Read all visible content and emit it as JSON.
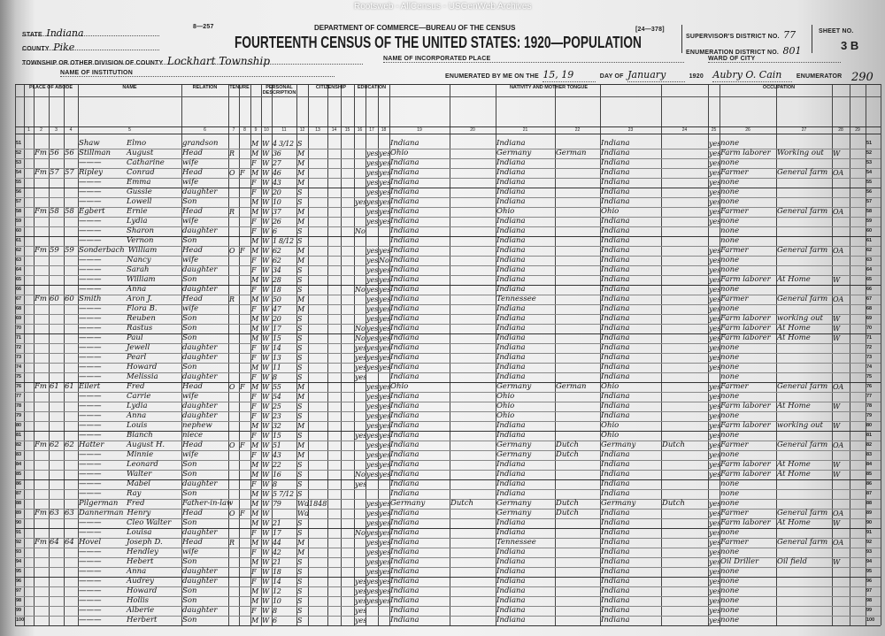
{
  "watermark": "Rootsweb - AllCensus - USGenWeb Archives",
  "header": {
    "form_no": "8—257",
    "department": "DEPARTMENT OF COMMERCE—BUREAU OF THE CENSUS",
    "title": "FOURTEENTH CENSUS OF THE UNITED STATES: 1920—POPULATION",
    "form_code": "[24—378]",
    "state_label": "STATE",
    "state": "Indiana",
    "county_label": "COUNTY",
    "county": "Pike",
    "township_label": "TOWNSHIP OR OTHER DIVISION OF COUNTY",
    "township": "Lockhart Township",
    "institution_label": "NAME OF INSTITUTION",
    "incorporated_label": "NAME OF INCORPORATED PLACE",
    "ward_label": "WARD OF CITY",
    "enumerated_label": "ENUMERATED BY ME ON THE",
    "enumerated_day": "15, 19",
    "day_of_label": "DAY OF",
    "month": "January",
    "year": "1920",
    "enumerator": "Aubry O. Cain",
    "enumerator_label": "ENUMERATOR",
    "supervisor_label": "SUPERVISOR'S DISTRICT NO.",
    "supervisor_no": "77",
    "ed_label": "ENUMERATION DISTRICT NO.",
    "ed_no": "801",
    "sheet_label": "SHEET NO.",
    "sheet_no": "3 B",
    "margin_note": "290"
  },
  "groups": [
    "PLACE OF ABODE",
    "NAME",
    "RELATION",
    "TENURE",
    "PERSONAL DESCRIPTION",
    "CITIZENSHIP",
    "EDUCATION",
    "NATIVITY AND MOTHER TONGUE",
    "OCCUPATION"
  ],
  "rows": [
    {
      "n": "51",
      "sn": "Shaw",
      "gn": "Elmo",
      "rel": "grandson",
      "sx": "M",
      "c": "W",
      "a": "4 3/12",
      "ms": "S",
      "bp": "Indiana",
      "fbp": "Indiana",
      "mbp": "Indiana",
      "en": "yes",
      "occ": "none"
    },
    {
      "n": "52",
      "h": "Fm",
      "d": "56",
      "f": "56",
      "sn": "Stillman",
      "gn": "August",
      "rel": "Head",
      "t": "R",
      "sx": "M",
      "c": "W",
      "a": "36",
      "ms": "M",
      "s": "",
      "r": "yes",
      "w": "yes",
      "bp": "Ohio",
      "fbp": "Germany",
      "ftg": "German",
      "mbp": "Indiana",
      "en": "yes",
      "occ": "Farm laborer",
      "ind": "Working out",
      "cls": "W"
    },
    {
      "n": "53",
      "gn": "Catharine",
      "rel": "wife",
      "sx": "F",
      "c": "W",
      "a": "27",
      "ms": "M",
      "r": "yes",
      "w": "yes",
      "bp": "Indiana",
      "fbp": "Indiana",
      "mbp": "Indiana",
      "en": "yes",
      "occ": "none"
    },
    {
      "n": "54",
      "h": "Fm",
      "d": "57",
      "f": "57",
      "sn": "Ripley",
      "gn": "Conrad",
      "rel": "Head",
      "t": "O",
      "m": "F",
      "sx": "M",
      "c": "W",
      "a": "46",
      "ms": "M",
      "r": "yes",
      "w": "yes",
      "bp": "Indiana",
      "fbp": "Indiana",
      "mbp": "Indiana",
      "en": "yes",
      "occ": "Farmer",
      "ind": "General farm",
      "cls": "OA"
    },
    {
      "n": "55",
      "gn": "Emma",
      "rel": "wife",
      "sx": "F",
      "c": "W",
      "a": "43",
      "ms": "M",
      "r": "yes",
      "w": "yes",
      "bp": "Indiana",
      "fbp": "Indiana",
      "mbp": "Indiana",
      "en": "yes",
      "occ": "none"
    },
    {
      "n": "56",
      "gn": "Gussie",
      "rel": "daughter",
      "sx": "F",
      "c": "W",
      "a": "20",
      "ms": "S",
      "r": "yes",
      "w": "yes",
      "bp": "Indiana",
      "fbp": "Indiana",
      "mbp": "Indiana",
      "en": "yes",
      "occ": "none"
    },
    {
      "n": "57",
      "gn": "Lowell",
      "rel": "Son",
      "sx": "M",
      "c": "W",
      "a": "10",
      "ms": "S",
      "s": "yes",
      "r": "yes",
      "w": "yes",
      "bp": "Indiana",
      "fbp": "Indiana",
      "mbp": "Indiana",
      "en": "yes",
      "occ": "none"
    },
    {
      "n": "58",
      "h": "Fm",
      "d": "58",
      "f": "58",
      "sn": "Egbert",
      "gn": "Ernie",
      "rel": "Head",
      "t": "R",
      "sx": "M",
      "c": "W",
      "a": "37",
      "ms": "M",
      "r": "yes",
      "w": "yes",
      "bp": "Indiana",
      "fbp": "Ohio",
      "mbp": "Ohio",
      "en": "yes",
      "occ": "Farmer",
      "ind": "General farm",
      "cls": "OA"
    },
    {
      "n": "59",
      "gn": "Lydia",
      "rel": "wife",
      "sx": "F",
      "c": "W",
      "a": "26",
      "ms": "M",
      "r": "yes",
      "w": "yes",
      "bp": "Indiana",
      "fbp": "Indiana",
      "mbp": "Indiana",
      "en": "yes",
      "occ": "none"
    },
    {
      "n": "60",
      "gn": "Sharon",
      "rel": "daughter",
      "sx": "F",
      "c": "W",
      "a": "6",
      "ms": "S",
      "s": "No",
      "bp": "Indiana",
      "fbp": "Indiana",
      "mbp": "Indiana",
      "occ": "none"
    },
    {
      "n": "61",
      "gn": "Vernon",
      "rel": "Son",
      "sx": "M",
      "c": "W",
      "a": "1 8/12",
      "ms": "S",
      "bp": "Indiana",
      "fbp": "Indiana",
      "mbp": "Indiana",
      "occ": "none"
    },
    {
      "n": "62",
      "h": "Fm",
      "d": "59",
      "f": "59",
      "sn": "Sonderbach",
      "gn": "William",
      "rel": "Head",
      "t": "O",
      "m": "F",
      "sx": "M",
      "c": "W",
      "a": "62",
      "ms": "M",
      "r": "yes",
      "w": "yes",
      "bp": "Indiana",
      "fbp": "Indiana",
      "mbp": "Indiana",
      "en": "yes",
      "occ": "Farmer",
      "ind": "General farm",
      "cls": "OA"
    },
    {
      "n": "63",
      "gn": "Nancy",
      "rel": "wife",
      "sx": "F",
      "c": "W",
      "a": "62",
      "ms": "M",
      "r": "yes",
      "w": "No",
      "bp": "Indiana",
      "fbp": "Indiana",
      "mbp": "Indiana",
      "en": "yes",
      "occ": "none"
    },
    {
      "n": "64",
      "gn": "Sarah",
      "rel": "daughter",
      "sx": "F",
      "c": "W",
      "a": "34",
      "ms": "S",
      "r": "yes",
      "w": "yes",
      "bp": "Indiana",
      "fbp": "Indiana",
      "mbp": "Indiana",
      "en": "yes",
      "occ": "none"
    },
    {
      "n": "65",
      "gn": "William",
      "rel": "Son",
      "sx": "M",
      "c": "W",
      "a": "28",
      "ms": "S",
      "r": "yes",
      "w": "yes",
      "bp": "Indiana",
      "fbp": "Indiana",
      "mbp": "Indiana",
      "en": "yes",
      "occ": "Farm laborer",
      "ind": "At Home",
      "cls": "W"
    },
    {
      "n": "66",
      "gn": "Anna",
      "rel": "daughter",
      "sx": "F",
      "c": "W",
      "a": "18",
      "ms": "S",
      "s": "No",
      "r": "yes",
      "w": "yes",
      "bp": "Indiana",
      "fbp": "Indiana",
      "mbp": "Indiana",
      "en": "yes",
      "occ": "none"
    },
    {
      "n": "67",
      "h": "Fm",
      "d": "60",
      "f": "60",
      "sn": "Smith",
      "gn": "Aron J.",
      "rel": "Head",
      "t": "R",
      "sx": "M",
      "c": "W",
      "a": "50",
      "ms": "M",
      "r": "yes",
      "w": "yes",
      "bp": "Indiana",
      "fbp": "Tennessee",
      "mbp": "Indiana",
      "en": "yes",
      "occ": "Farmer",
      "ind": "General farm",
      "cls": "OA"
    },
    {
      "n": "68",
      "gn": "Flora B.",
      "rel": "wife",
      "sx": "F",
      "c": "W",
      "a": "47",
      "ms": "M",
      "r": "yes",
      "w": "yes",
      "bp": "Indiana",
      "fbp": "Indiana",
      "mbp": "Indiana",
      "en": "yes",
      "occ": "none"
    },
    {
      "n": "69",
      "gn": "Reuben",
      "rel": "Son",
      "sx": "M",
      "c": "W",
      "a": "20",
      "ms": "S",
      "r": "yes",
      "w": "yes",
      "bp": "Indiana",
      "fbp": "Indiana",
      "mbp": "Indiana",
      "en": "yes",
      "occ": "Farm laborer",
      "ind": "working out",
      "cls": "W"
    },
    {
      "n": "70",
      "gn": "Rastus",
      "rel": "Son",
      "sx": "M",
      "c": "W",
      "a": "17",
      "ms": "S",
      "s": "No",
      "r": "yes",
      "w": "yes",
      "bp": "Indiana",
      "fbp": "Indiana",
      "mbp": "Indiana",
      "en": "yes",
      "occ": "Farm laborer",
      "ind": "At Home",
      "cls": "W"
    },
    {
      "n": "71",
      "gn": "Paul",
      "rel": "Son",
      "sx": "M",
      "c": "W",
      "a": "15",
      "ms": "S",
      "s": "No",
      "r": "yes",
      "w": "yes",
      "bp": "Indiana",
      "fbp": "Indiana",
      "mbp": "Indiana",
      "en": "yes",
      "occ": "Farm laborer",
      "ind": "At Home",
      "cls": "W"
    },
    {
      "n": "72",
      "gn": "Jewell",
      "rel": "daughter",
      "sx": "F",
      "c": "W",
      "a": "14",
      "ms": "S",
      "s": "yes",
      "r": "yes",
      "w": "yes",
      "bp": "Indiana",
      "fbp": "Indiana",
      "mbp": "Indiana",
      "en": "yes",
      "occ": "none"
    },
    {
      "n": "73",
      "gn": "Pearl",
      "rel": "daughter",
      "sx": "F",
      "c": "W",
      "a": "13",
      "ms": "S",
      "s": "yes",
      "r": "yes",
      "w": "yes",
      "bp": "Indiana",
      "fbp": "Indiana",
      "mbp": "Indiana",
      "en": "yes",
      "occ": "none"
    },
    {
      "n": "74",
      "gn": "Howard",
      "rel": "Son",
      "sx": "M",
      "c": "W",
      "a": "11",
      "ms": "S",
      "s": "yes",
      "r": "yes",
      "w": "yes",
      "bp": "Indiana",
      "fbp": "Indiana",
      "mbp": "Indiana",
      "en": "yes",
      "occ": "none"
    },
    {
      "n": "75",
      "gn": "Melissia",
      "rel": "daughter",
      "sx": "F",
      "c": "W",
      "a": "8",
      "ms": "S",
      "s": "yes",
      "bp": "Indiana",
      "fbp": "Indiana",
      "mbp": "Indiana",
      "occ": "none"
    },
    {
      "n": "76",
      "h": "Fm",
      "d": "61",
      "f": "61",
      "sn": "Eilert",
      "gn": "Fred",
      "rel": "Head",
      "t": "O",
      "m": "F",
      "sx": "M",
      "c": "W",
      "a": "55",
      "ms": "M",
      "r": "yes",
      "w": "yes",
      "bp": "Ohio",
      "fbp": "Germany",
      "ftg": "German",
      "mbp": "Ohio",
      "en": "yes",
      "occ": "Farmer",
      "ind": "General farm",
      "cls": "OA"
    },
    {
      "n": "77",
      "gn": "Carrie",
      "rel": "wife",
      "sx": "F",
      "c": "W",
      "a": "54",
      "ms": "M",
      "r": "yes",
      "w": "yes",
      "bp": "Indiana",
      "fbp": "Ohio",
      "mbp": "Indiana",
      "en": "yes",
      "occ": "none"
    },
    {
      "n": "78",
      "gn": "Lydia",
      "rel": "daughter",
      "sx": "F",
      "c": "W",
      "a": "25",
      "ms": "S",
      "r": "yes",
      "w": "yes",
      "bp": "Indiana",
      "fbp": "Ohio",
      "mbp": "Indiana",
      "en": "yes",
      "occ": "Farm laborer",
      "ind": "At Home",
      "cls": "W"
    },
    {
      "n": "79",
      "gn": "Anna",
      "rel": "daughter",
      "sx": "F",
      "c": "W",
      "a": "23",
      "ms": "S",
      "r": "yes",
      "w": "yes",
      "bp": "Indiana",
      "fbp": "Ohio",
      "mbp": "Indiana",
      "en": "yes",
      "occ": "none"
    },
    {
      "n": "80",
      "gn": "Louis",
      "rel": "nephew",
      "sx": "M",
      "c": "W",
      "a": "32",
      "ms": "M",
      "r": "yes",
      "w": "yes",
      "bp": "Indiana",
      "fbp": "Indiana",
      "mbp": "Ohio",
      "en": "yes",
      "occ": "Farm laborer",
      "ind": "working out",
      "cls": "W"
    },
    {
      "n": "81",
      "gn": "Blanch",
      "rel": "niece",
      "sx": "F",
      "c": "W",
      "a": "15",
      "ms": "S",
      "s": "yes",
      "r": "yes",
      "w": "yes",
      "bp": "Indiana",
      "fbp": "Indiana",
      "mbp": "Ohio",
      "en": "yes",
      "occ": "none"
    },
    {
      "n": "82",
      "h": "Fm",
      "d": "62",
      "f": "62",
      "sn": "Hatter",
      "gn": "August H.",
      "rel": "Head",
      "t": "O",
      "m": "F",
      "sx": "M",
      "c": "W",
      "a": "51",
      "ms": "M",
      "r": "yes",
      "w": "yes",
      "bp": "Indiana",
      "fbp": "Germany",
      "ftg": "Dutch",
      "mbp": "Germany",
      "mtg": "Dutch",
      "en": "yes",
      "occ": "Farmer",
      "ind": "General farm",
      "cls": "OA"
    },
    {
      "n": "83",
      "gn": "Minnie",
      "rel": "wife",
      "sx": "F",
      "c": "W",
      "a": "43",
      "ms": "M",
      "r": "yes",
      "w": "yes",
      "bp": "Indiana",
      "fbp": "Germany",
      "ftg": "Dutch",
      "mbp": "Indiana",
      "en": "yes",
      "occ": "none"
    },
    {
      "n": "84",
      "gn": "Leonard",
      "rel": "Son",
      "sx": "M",
      "c": "W",
      "a": "22",
      "ms": "S",
      "r": "yes",
      "w": "yes",
      "bp": "Indiana",
      "fbp": "Indiana",
      "mbp": "Indiana",
      "en": "yes",
      "occ": "Farm laborer",
      "ind": "At Home",
      "cls": "W"
    },
    {
      "n": "85",
      "gn": "Walter",
      "rel": "Son",
      "sx": "M",
      "c": "W",
      "a": "16",
      "ms": "S",
      "s": "No",
      "r": "yes",
      "w": "yes",
      "bp": "Indiana",
      "fbp": "Indiana",
      "mbp": "Indiana",
      "en": "yes",
      "occ": "Farm laborer",
      "ind": "At Home",
      "cls": "W"
    },
    {
      "n": "86",
      "gn": "Mabel",
      "rel": "daughter",
      "sx": "F",
      "c": "W",
      "a": "8",
      "ms": "S",
      "s": "yes",
      "bp": "Indiana",
      "fbp": "Indiana",
      "mbp": "Indiana",
      "occ": "none"
    },
    {
      "n": "87",
      "gn": "Ray",
      "rel": "Son",
      "sx": "M",
      "c": "W",
      "a": "5 7/12",
      "ms": "S",
      "bp": "Indiana",
      "fbp": "Indiana",
      "mbp": "Indiana",
      "occ": "none"
    },
    {
      "n": "88",
      "sn": "Pilgerman",
      "gn": "Fred",
      "rel": "Father-in-law",
      "sx": "M",
      "c": "W",
      "a": "79",
      "ms": "Wd",
      "im": "1848",
      "r": "yes",
      "w": "yes",
      "bp": "Germany",
      "ft": "Dutch",
      "fbp": "Germany",
      "ftg": "Dutch",
      "mbp": "Germany",
      "mtg": "Dutch",
      "en": "yes",
      "occ": "none"
    },
    {
      "n": "89",
      "h": "Fm",
      "d": "63",
      "f": "63",
      "sn": "Dannerman",
      "gn": "Henry",
      "rel": "Head",
      "t": "O",
      "m": "F",
      "sx": "M",
      "c": "W",
      "a": "",
      "ms": "Wd",
      "r": "yes",
      "w": "yes",
      "bp": "Indiana",
      "fbp": "Germany",
      "ftg": "Dutch",
      "mbp": "Indiana",
      "en": "yes",
      "occ": "Farmer",
      "ind": "General farm",
      "cls": "OA"
    },
    {
      "n": "90",
      "gn": "Cleo Walter",
      "rel": "Son",
      "sx": "M",
      "c": "W",
      "a": "21",
      "ms": "S",
      "r": "yes",
      "w": "yes",
      "bp": "Indiana",
      "fbp": "Indiana",
      "mbp": "Indiana",
      "en": "yes",
      "occ": "Farm laborer",
      "ind": "At Home",
      "cls": "W"
    },
    {
      "n": "91",
      "gn": "Louisa",
      "rel": "daughter",
      "sx": "F",
      "c": "W",
      "a": "17",
      "ms": "S",
      "s": "No",
      "r": "yes",
      "w": "yes",
      "bp": "Indiana",
      "fbp": "Indiana",
      "mbp": "Indiana",
      "en": "yes",
      "occ": "none"
    },
    {
      "n": "92",
      "h": "Fm",
      "d": "64",
      "f": "64",
      "sn": "Hovel",
      "gn": "Joseph D.",
      "rel": "Head",
      "t": "R",
      "sx": "M",
      "c": "W",
      "a": "44",
      "ms": "M",
      "r": "yes",
      "w": "yes",
      "bp": "Indiana",
      "fbp": "Tennessee",
      "mbp": "Indiana",
      "en": "yes",
      "occ": "Farmer",
      "ind": "General farm",
      "cls": "OA"
    },
    {
      "n": "93",
      "gn": "Hendley",
      "rel": "wife",
      "sx": "F",
      "c": "W",
      "a": "42",
      "ms": "M",
      "r": "yes",
      "w": "yes",
      "bp": "Indiana",
      "fbp": "Indiana",
      "mbp": "Indiana",
      "en": "yes",
      "occ": "none"
    },
    {
      "n": "94",
      "gn": "Hebert",
      "rel": "Son",
      "sx": "M",
      "c": "W",
      "a": "21",
      "ms": "S",
      "r": "yes",
      "w": "yes",
      "bp": "Indiana",
      "fbp": "Indiana",
      "mbp": "Indiana",
      "en": "yes",
      "occ": "Oil Driller",
      "ind": "Oil field",
      "cls": "W"
    },
    {
      "n": "95",
      "gn": "Anna",
      "rel": "daughter",
      "sx": "F",
      "c": "W",
      "a": "18",
      "ms": "S",
      "r": "yes",
      "w": "yes",
      "bp": "Indiana",
      "fbp": "Indiana",
      "mbp": "Indiana",
      "en": "yes",
      "occ": "none"
    },
    {
      "n": "96",
      "gn": "Audrey",
      "rel": "daughter",
      "sx": "F",
      "c": "W",
      "a": "14",
      "ms": "S",
      "s": "yes",
      "r": "yes",
      "w": "yes",
      "bp": "Indiana",
      "fbp": "Indiana",
      "mbp": "Indiana",
      "en": "yes",
      "occ": "none"
    },
    {
      "n": "97",
      "gn": "Howard",
      "rel": "Son",
      "sx": "M",
      "c": "W",
      "a": "12",
      "ms": "S",
      "s": "yes",
      "r": "yes",
      "w": "yes",
      "bp": "Indiana",
      "fbp": "Indiana",
      "mbp": "Indiana",
      "en": "yes",
      "occ": "none"
    },
    {
      "n": "98",
      "gn": "Hollis",
      "rel": "Son",
      "sx": "M",
      "c": "W",
      "a": "10",
      "ms": "S",
      "s": "yes",
      "r": "yes",
      "w": "yes",
      "bp": "Indiana",
      "fbp": "Indiana",
      "mbp": "Indiana",
      "en": "yes",
      "occ": "none"
    },
    {
      "n": "99",
      "gn": "Alberie",
      "rel": "daughter",
      "sx": "F",
      "c": "W",
      "a": "8",
      "ms": "S",
      "s": "yes",
      "bp": "Indiana",
      "fbp": "Indiana",
      "mbp": "Indiana",
      "en": "yes",
      "occ": "none"
    },
    {
      "n": "100",
      "gn": "Herbert",
      "rel": "Son",
      "sx": "M",
      "c": "W",
      "a": "6",
      "ms": "S",
      "s": "yes",
      "bp": "Indiana",
      "fbp": "Indiana",
      "mbp": "Indiana",
      "en": "yes",
      "occ": "none"
    }
  ]
}
